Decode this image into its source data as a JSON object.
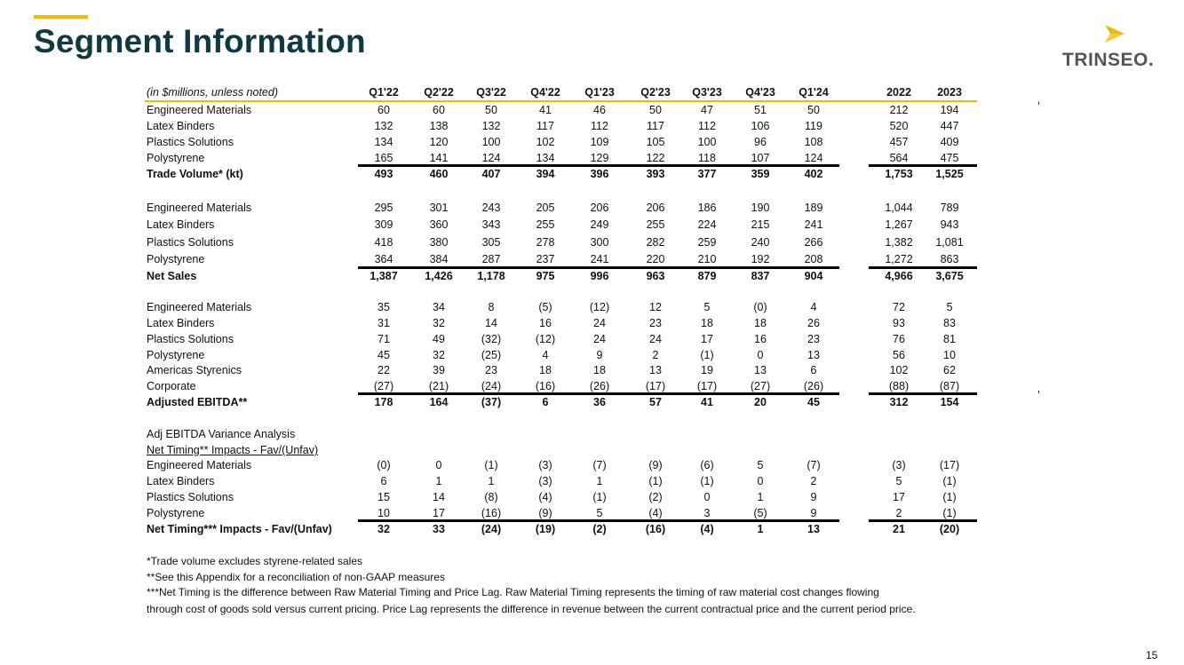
{
  "title": "Segment Information",
  "logo_text": "TRINSEO.",
  "page_number": "15",
  "colors": {
    "accent": "#f5b800",
    "title": "#0f3a44"
  },
  "table": {
    "unit_note": "(in $millions, unless noted)",
    "columns": [
      "Q1'22",
      "Q2'22",
      "Q3'22",
      "Q4'22",
      "Q1'23",
      "Q2'23",
      "Q3'23",
      "Q4'23",
      "Q1'24",
      "2022",
      "2023"
    ],
    "sections": [
      {
        "rows": [
          {
            "label": "Engineered Materials",
            "values": [
              "60",
              "60",
              "50",
              "41",
              "46",
              "50",
              "47",
              "51",
              "50",
              "212",
              "194"
            ]
          },
          {
            "label": "Latex Binders",
            "values": [
              "132",
              "138",
              "132",
              "117",
              "112",
              "117",
              "112",
              "106",
              "119",
              "520",
              "447"
            ]
          },
          {
            "label": "Plastics Solutions",
            "values": [
              "134",
              "120",
              "100",
              "102",
              "109",
              "105",
              "100",
              "96",
              "108",
              "457",
              "409"
            ]
          },
          {
            "label": "Polystyrene",
            "values": [
              "165",
              "141",
              "124",
              "134",
              "129",
              "122",
              "118",
              "107",
              "124",
              "564",
              "475"
            ]
          }
        ],
        "total": {
          "label": "Trade Volume* (kt)",
          "values": [
            "493",
            "460",
            "407",
            "394",
            "396",
            "393",
            "377",
            "359",
            "402",
            "1,753",
            "1,525"
          ]
        }
      },
      {
        "rows": [
          {
            "label": "Engineered Materials",
            "values": [
              "295",
              "301",
              "243",
              "205",
              "206",
              "206",
              "186",
              "190",
              "189",
              "1,044",
              "789"
            ]
          },
          {
            "label": "Latex Binders",
            "values": [
              "309",
              "360",
              "343",
              "255",
              "249",
              "255",
              "224",
              "215",
              "241",
              "1,267",
              "943"
            ]
          },
          {
            "label": "Plastics Solutions",
            "values": [
              "418",
              "380",
              "305",
              "278",
              "300",
              "282",
              "259",
              "240",
              "266",
              "1,382",
              "1,081"
            ]
          },
          {
            "label": "Polystyrene",
            "values": [
              "364",
              "384",
              "287",
              "237",
              "241",
              "220",
              "210",
              "192",
              "208",
              "1,272",
              "863"
            ]
          }
        ],
        "total": {
          "label": "Net Sales",
          "values": [
            "1,387",
            "1,426",
            "1,178",
            "975",
            "996",
            "963",
            "879",
            "837",
            "904",
            "4,966",
            "3,675"
          ]
        }
      },
      {
        "rows": [
          {
            "label": "Engineered Materials",
            "values": [
              "35",
              "34",
              "8",
              "(5)",
              "(12)",
              "12",
              "5",
              "(0)",
              "4",
              "72",
              "5"
            ]
          },
          {
            "label": "Latex Binders",
            "values": [
              "31",
              "32",
              "14",
              "16",
              "24",
              "23",
              "18",
              "18",
              "26",
              "93",
              "83"
            ]
          },
          {
            "label": "Plastics Solutions",
            "values": [
              "71",
              "49",
              "(32)",
              "(12)",
              "24",
              "24",
              "17",
              "16",
              "23",
              "76",
              "81"
            ]
          },
          {
            "label": "Polystyrene",
            "values": [
              "45",
              "32",
              "(25)",
              "4",
              "9",
              "2",
              "(1)",
              "0",
              "13",
              "56",
              "10"
            ]
          },
          {
            "label": "Americas Styrenics",
            "values": [
              "22",
              "39",
              "23",
              "18",
              "18",
              "13",
              "19",
              "13",
              "6",
              "102",
              "62"
            ]
          },
          {
            "label": "Corporate",
            "values": [
              "(27)",
              "(21)",
              "(24)",
              "(16)",
              "(26)",
              "(17)",
              "(17)",
              "(27)",
              "(26)",
              "(88)",
              "(87)"
            ]
          }
        ],
        "total": {
          "label": "Adjusted EBITDA**",
          "values": [
            "178",
            "164",
            "(37)",
            "6",
            "36",
            "57",
            "41",
            "20",
            "45",
            "312",
            "154"
          ]
        }
      },
      {
        "heading": "Adj EBITDA Variance Analysis",
        "subheading": "Net Timing** Impacts - Fav/(Unfav)",
        "rows": [
          {
            "label": "Engineered Materials",
            "values": [
              "(0)",
              "0",
              "(1)",
              "(3)",
              "(7)",
              "(9)",
              "(6)",
              "5",
              "(7)",
              "(3)",
              "(17)"
            ]
          },
          {
            "label": "Latex Binders",
            "values": [
              "6",
              "1",
              "1",
              "(3)",
              "1",
              "(1)",
              "(1)",
              "0",
              "2",
              "5",
              "(1)"
            ]
          },
          {
            "label": "Plastics Solutions",
            "values": [
              "15",
              "14",
              "(8)",
              "(4)",
              "(1)",
              "(2)",
              "0",
              "1",
              "9",
              "17",
              "(1)"
            ]
          },
          {
            "label": "Polystyrene",
            "values": [
              "10",
              "17",
              "(16)",
              "(9)",
              "5",
              "(4)",
              "3",
              "(5)",
              "9",
              "2",
              "(1)"
            ]
          }
        ],
        "total": {
          "label": "Net Timing*** Impacts - Fav/(Unfav)",
          "values": [
            "32",
            "33",
            "(24)",
            "(19)",
            "(2)",
            "(16)",
            "(4)",
            "1",
            "13",
            "21",
            "(20)"
          ]
        }
      }
    ]
  },
  "footnotes": [
    "*Trade volume excludes styrene-related sales",
    "**See this Appendix for a reconciliation of non-GAAP measures",
    "***Net Timing is the difference between Raw Material Timing and Price Lag. Raw Material Timing represents the timing of raw material cost changes flowing",
    "through cost of goods sold versus current pricing.  Price Lag represents the difference in revenue between the current contractual price and the current period price."
  ]
}
